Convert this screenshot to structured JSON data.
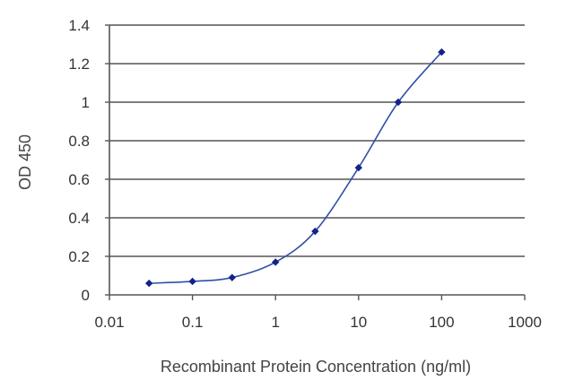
{
  "chart_data": {
    "type": "line",
    "title": "",
    "xlabel": "Recombinant Protein Concentration (ng/ml)",
    "ylabel": "OD 450",
    "x_scale": "log",
    "xlim": [
      0.01,
      1000
    ],
    "ylim": [
      0,
      1.4
    ],
    "x_tick_labels": [
      "0.01",
      "0.1",
      "1",
      "10",
      "100",
      "1000"
    ],
    "y_tick_labels": [
      "0",
      "0.2",
      "0.4",
      "0.6",
      "0.8",
      "1",
      "1.2",
      "1.4"
    ],
    "grid": "horizontal",
    "legend": "none",
    "series": [
      {
        "x": [
          0.03,
          0.1,
          0.3,
          1,
          3,
          10,
          30,
          100
        ],
        "y": [
          0.06,
          0.07,
          0.09,
          0.17,
          0.33,
          0.66,
          1.0,
          1.26
        ]
      }
    ],
    "colors": {
      "line": "#2f4fa8",
      "marker": "#12238a",
      "grid": "#555555",
      "axis": "#555555"
    }
  }
}
